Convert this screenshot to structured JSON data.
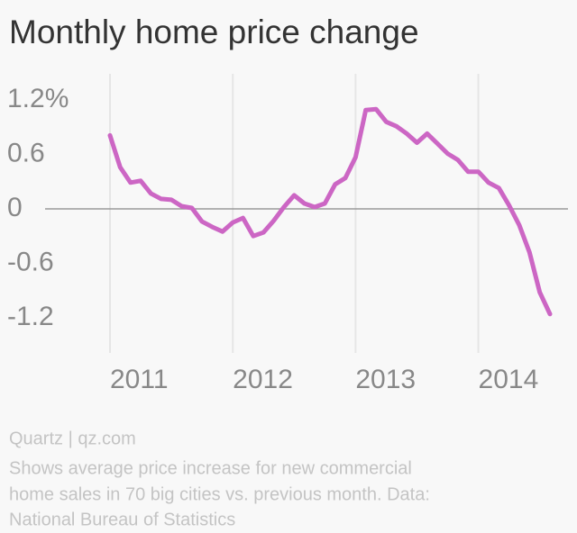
{
  "chart_data": {
    "type": "line",
    "title": "Monthly home price change",
    "source": "Quartz | qz.com",
    "note": [
      "Shows average price increase for new commercial",
      "home sales in 70 big cities vs. previous month. Data:",
      "National Bureau of Statistics"
    ],
    "categories": [
      "2011",
      null,
      null,
      null,
      null,
      null,
      null,
      null,
      null,
      null,
      null,
      null,
      "2012",
      null,
      null,
      null,
      null,
      null,
      null,
      null,
      null,
      null,
      null,
      null,
      "2013",
      null,
      null,
      null,
      null,
      null,
      null,
      null,
      null,
      null,
      null,
      null,
      "2014",
      null,
      null,
      null,
      null,
      null,
      null,
      null
    ],
    "series": [
      {
        "name": "Monthly home price change",
        "color": "#cc66c4",
        "values": [
          0.81,
          0.46,
          0.29,
          0.31,
          0.17,
          0.11,
          0.1,
          0.03,
          0.01,
          -0.14,
          -0.2,
          -0.25,
          -0.15,
          -0.1,
          -0.3,
          -0.26,
          -0.13,
          0.02,
          0.15,
          0.06,
          0.02,
          0.06,
          0.27,
          0.34,
          0.57,
          1.09,
          1.1,
          0.96,
          0.91,
          0.83,
          0.73,
          0.83,
          0.72,
          0.61,
          0.54,
          0.41,
          0.41,
          0.29,
          0.23,
          0.04,
          -0.18,
          -0.48,
          -0.92,
          -1.16
        ]
      }
    ],
    "ylim": [
      -1.4,
      1.4
    ],
    "yticks": [
      {
        "value": 1.2,
        "label": "1.2%"
      },
      0.6,
      0,
      -0.6,
      -1.2
    ],
    "grid": true
  }
}
